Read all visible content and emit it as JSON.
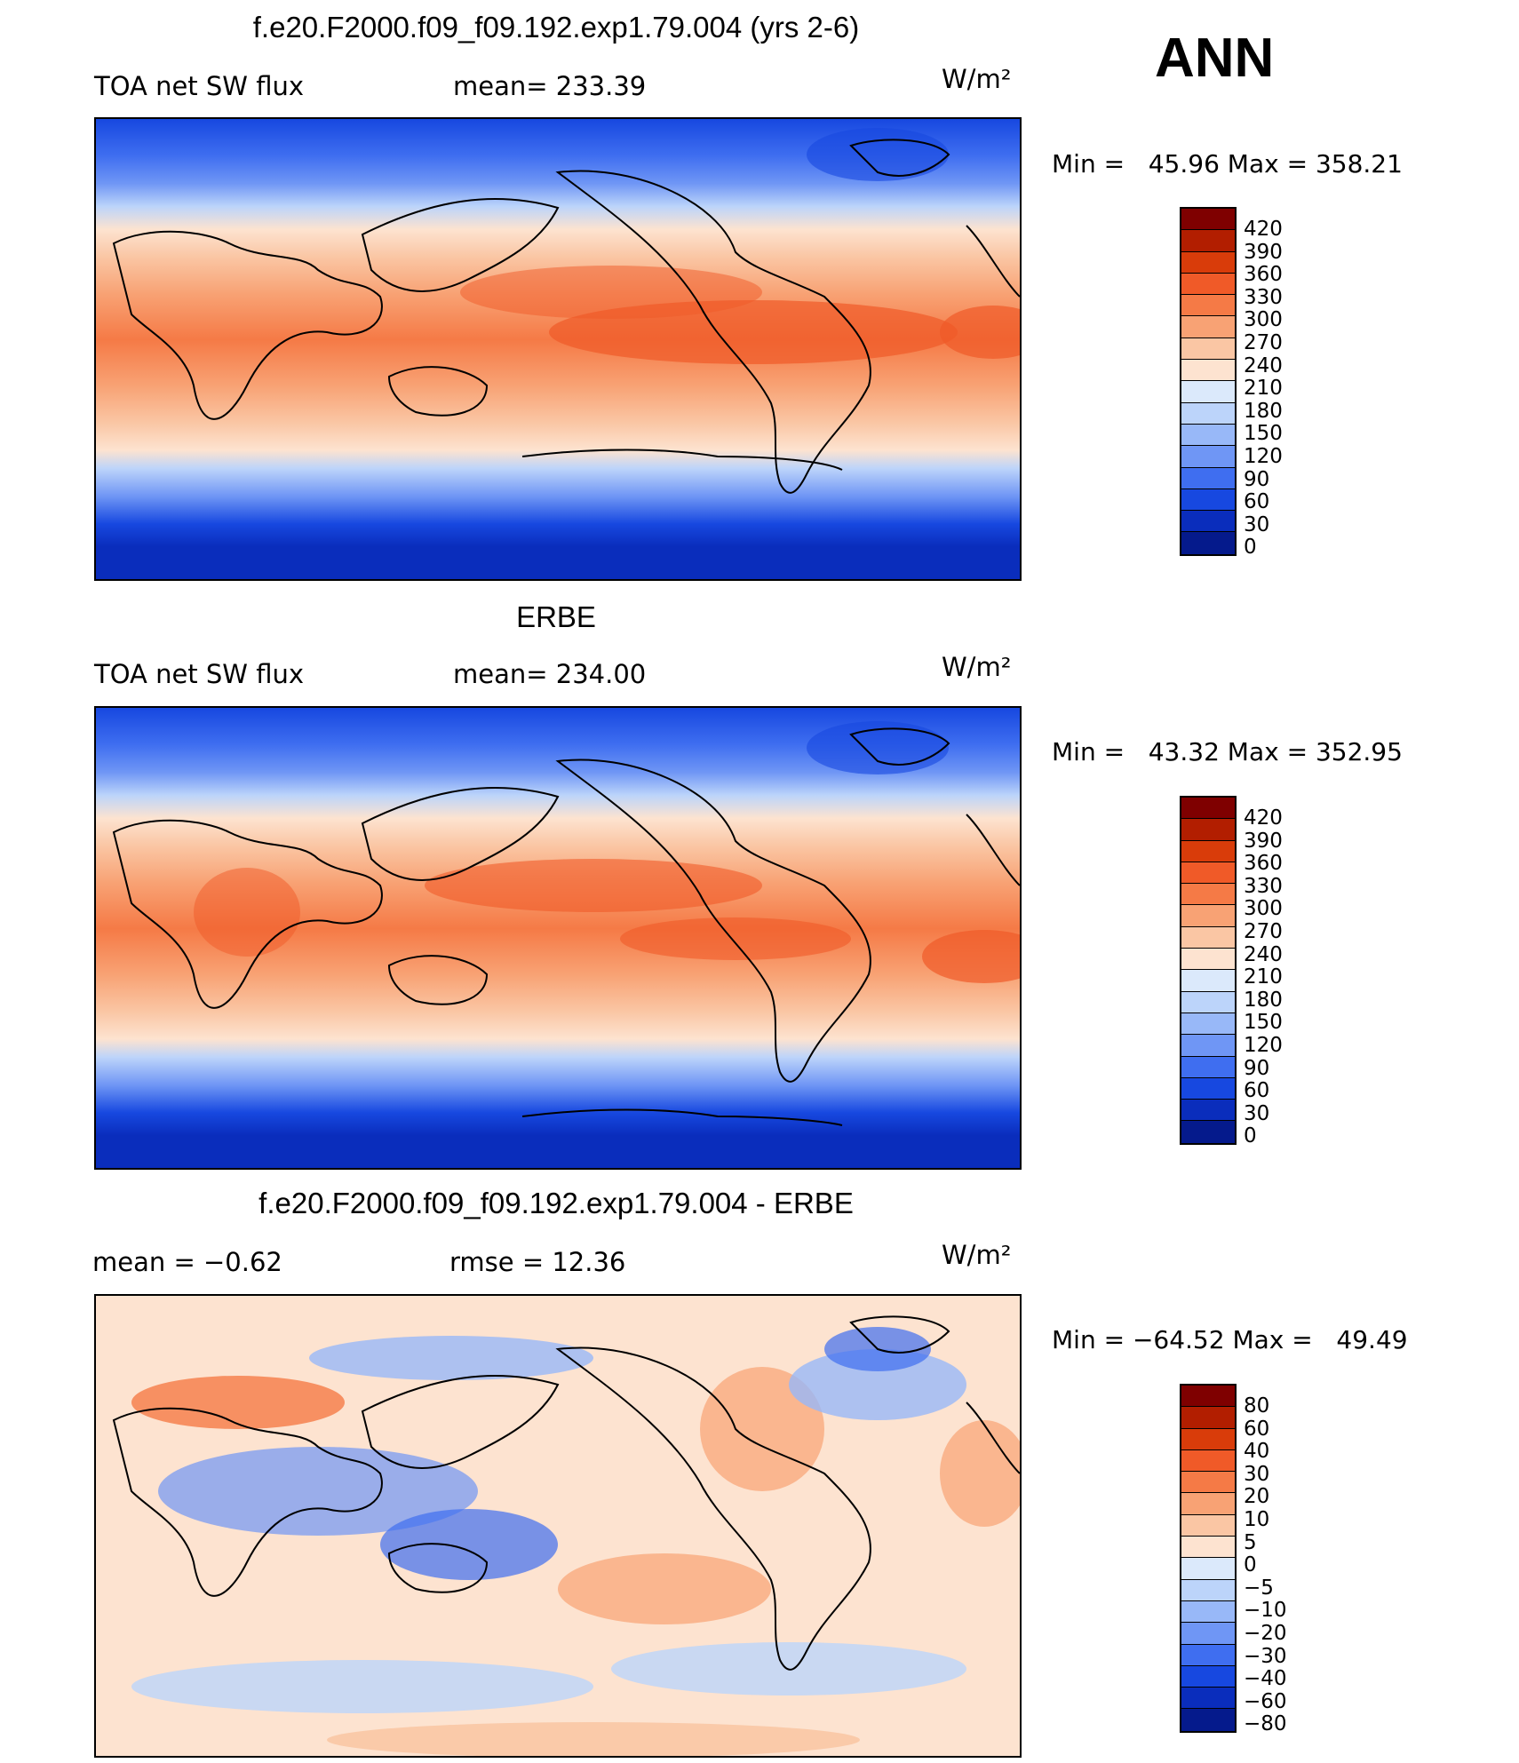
{
  "ann_label": "ANN",
  "units": "W/m²",
  "panels": [
    {
      "title": "f.e20.F2000.f09_f09.192.exp1.79.004 (yrs 2-6)",
      "left_label": "TOA net SW flux",
      "stat_label": "mean= 233.39",
      "minmax": "Min =   45.96 Max = 358.21",
      "colorbar_labels": [
        "420",
        "390",
        "360",
        "330",
        "300",
        "270",
        "240",
        "210",
        "180",
        "150",
        "120",
        "90",
        "60",
        "30",
        "0"
      ],
      "colors": [
        "#7f0000",
        "#b21e00",
        "#d93c0a",
        "#f05a28",
        "#f57a46",
        "#f8a274",
        "#fac6a4",
        "#fde3d0",
        "#dbe9fb",
        "#bcd4fa",
        "#98b8f8",
        "#6f96f5",
        "#3f6ef0",
        "#1748e0",
        "#0a2dbc",
        "#051a8c"
      ]
    },
    {
      "title": "ERBE",
      "left_label": "TOA net SW flux",
      "stat_label": "mean= 234.00",
      "minmax": "Min =   43.32 Max = 352.95",
      "colorbar_labels": [
        "420",
        "390",
        "360",
        "330",
        "300",
        "270",
        "240",
        "210",
        "180",
        "150",
        "120",
        "90",
        "60",
        "30",
        "0"
      ],
      "colors": [
        "#7f0000",
        "#b21e00",
        "#d93c0a",
        "#f05a28",
        "#f57a46",
        "#f8a274",
        "#fac6a4",
        "#fde3d0",
        "#dbe9fb",
        "#bcd4fa",
        "#98b8f8",
        "#6f96f5",
        "#3f6ef0",
        "#1748e0",
        "#0a2dbc",
        "#051a8c"
      ]
    },
    {
      "title": "f.e20.F2000.f09_f09.192.exp1.79.004 - ERBE",
      "left_label": "mean =   −0.62",
      "stat_label": "rmse =   12.36",
      "minmax": "Min = −64.52 Max =   49.49",
      "colorbar_labels": [
        "80",
        "60",
        "40",
        "30",
        "20",
        "10",
        "5",
        "0",
        "−5",
        "−10",
        "−20",
        "−30",
        "−40",
        "−60",
        "−80"
      ],
      "colors": [
        "#7f0000",
        "#b21e00",
        "#d93c0a",
        "#f05a28",
        "#f57a46",
        "#f8a274",
        "#fac6a4",
        "#fde3d0",
        "#dbe9fb",
        "#bcd4fa",
        "#98b8f8",
        "#6f96f5",
        "#3f6ef0",
        "#1748e0",
        "#0a2dbc",
        "#051a8c"
      ]
    }
  ]
}
